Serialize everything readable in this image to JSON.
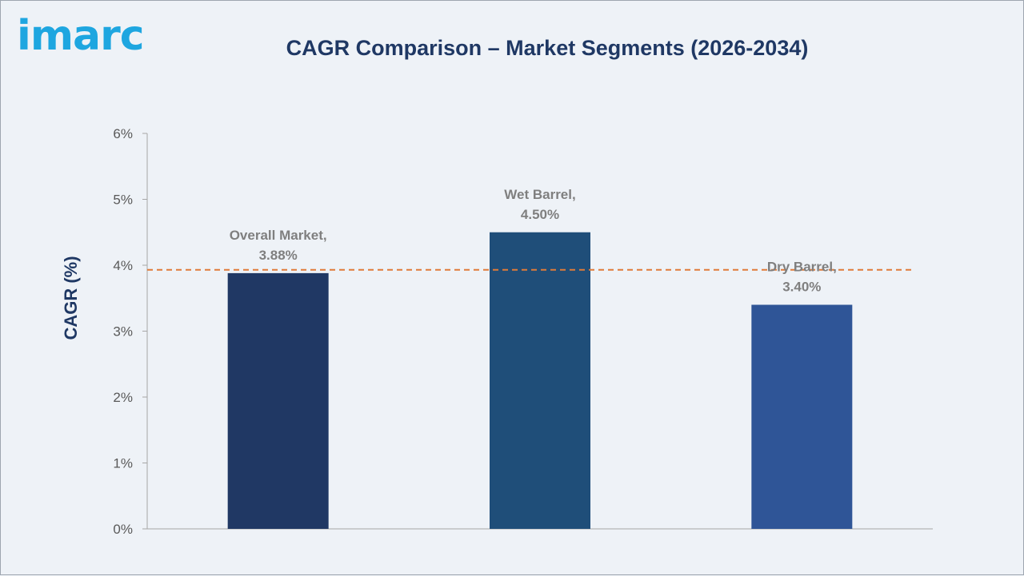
{
  "logo": {
    "text": "imarc",
    "color": "#1ea6e0"
  },
  "chart_data": {
    "type": "bar",
    "title": "CAGR Comparison – Market Segments (2026-2034)",
    "ylabel": "CAGR (%)",
    "xlabel": "",
    "ylim": [
      0,
      6
    ],
    "yticks": [
      0,
      1,
      2,
      3,
      4,
      5,
      6
    ],
    "ytick_labels": [
      "0%",
      "1%",
      "2%",
      "3%",
      "4%",
      "5%",
      "6%"
    ],
    "categories": [
      "Overall Market",
      "Wet Barrel",
      "Dry Barrel"
    ],
    "values": [
      3.88,
      4.5,
      3.4
    ],
    "data_labels": [
      [
        "Overall Market,",
        "3.88%"
      ],
      [
        "Wet Barrel,",
        "4.50%"
      ],
      [
        "Dry Barrel,",
        "3.40%"
      ]
    ],
    "bar_colors": [
      "#203864",
      "#1f4e79",
      "#2f5597"
    ],
    "reference_line": {
      "value": 3.93,
      "style": "dashed",
      "color": "#e07b39"
    },
    "grid": false,
    "legend": "none"
  }
}
